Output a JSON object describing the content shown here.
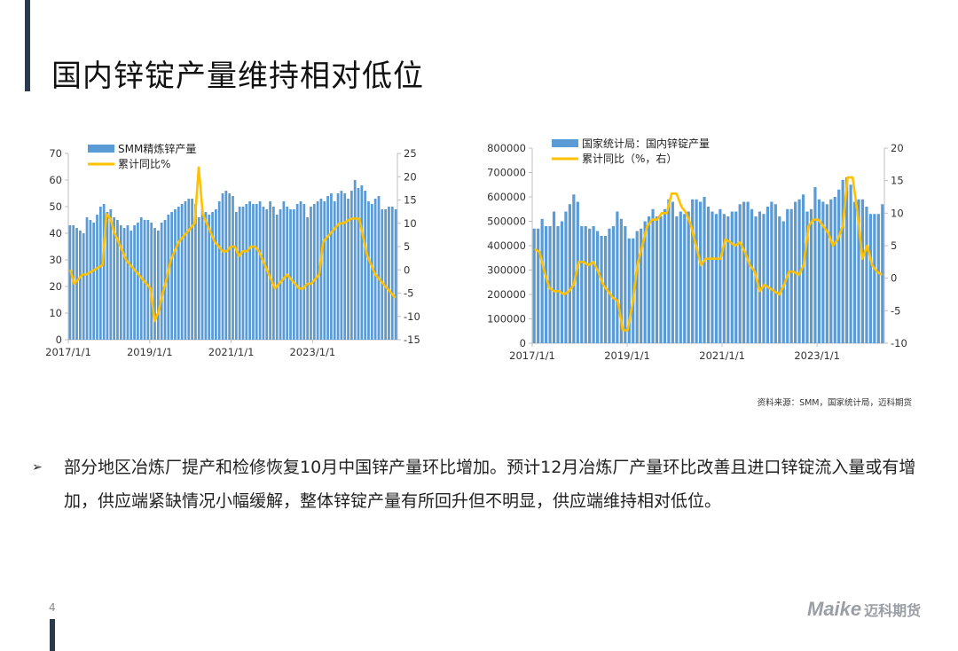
{
  "page": {
    "title": "国内锌锭产量维持相对低位",
    "source_note": "资料来源：SMM，国家统计局，迈科期货",
    "bullet_marker": "➢",
    "bullet_text": "部分地区冶炼厂提产和检修恢复10月中国锌产量环比增加。预计12月冶炼厂产量环比改善且进口锌锭流入量或有增加，供应端紧缺情况小幅缓解，整体锌锭产量有所回升但不明显，供应端维持相对低位。",
    "page_number": "4",
    "logo_latin": "Maike",
    "logo_cn": "迈科期货"
  },
  "colors": {
    "bar": "#5b9bd5",
    "line": "#ffc000",
    "axis": "#bfbfbf",
    "accent": "#2b3a4f"
  },
  "chart_data": [
    {
      "type": "bar",
      "title": "",
      "series": [
        {
          "name": "SMM精炼锌产量",
          "type": "bar",
          "axis": "left",
          "values": [
            43,
            43,
            42,
            41,
            40,
            46,
            45,
            44,
            47,
            50,
            51,
            48,
            49,
            46,
            45,
            43,
            42,
            43,
            41,
            43,
            44,
            46,
            45,
            45,
            44,
            42,
            41,
            44,
            45,
            47,
            48,
            49,
            50,
            51,
            52,
            53,
            53,
            51,
            46,
            49,
            48,
            47,
            48,
            49,
            52,
            55,
            56,
            55,
            54,
            48,
            50,
            50,
            51,
            52,
            51,
            51,
            52,
            50,
            49,
            52,
            50,
            47,
            49,
            52,
            50,
            49,
            49,
            51,
            52,
            51,
            46,
            50,
            51,
            52,
            53,
            52,
            54,
            55,
            52,
            55,
            56,
            55,
            53,
            56,
            60,
            57,
            58,
            56,
            52,
            51,
            53,
            54,
            49,
            49,
            50,
            50,
            49
          ]
        },
        {
          "name": "累计同比%",
          "type": "line",
          "axis": "right",
          "values": [
            0,
            -3,
            -2,
            -1,
            -1,
            -0.5,
            0,
            0.5,
            1,
            12,
            11,
            8,
            6,
            4,
            2,
            1,
            0,
            -1,
            -2,
            -3,
            -4,
            -11,
            -9,
            -5,
            -2,
            2,
            4,
            6,
            7,
            8,
            9,
            10,
            22,
            12,
            10,
            8,
            6,
            5,
            4,
            4,
            5,
            5,
            3,
            4,
            4,
            5,
            5,
            4,
            2,
            0,
            -2,
            -4,
            -3,
            -2,
            -1,
            -2,
            -3,
            -4,
            -4,
            -3,
            -3,
            -2,
            -1,
            6,
            7,
            8,
            9,
            10,
            10,
            10.5,
            11,
            11,
            11,
            7,
            3,
            1,
            -1,
            -2,
            -3,
            -4,
            -5,
            -6
          ]
        }
      ],
      "x_tick_labels": [
        "2017/1/1",
        "2019/1/1",
        "2021/1/1",
        "2023/1/1"
      ],
      "x_tick_index": [
        0,
        24,
        48,
        72
      ],
      "ylim_left": [
        0,
        70
      ],
      "yticks_left": [
        0,
        10,
        20,
        30,
        40,
        50,
        60,
        70
      ],
      "ylim_right": [
        -15,
        25
      ],
      "yticks_right": [
        -15,
        -10,
        -5,
        0,
        5,
        10,
        15,
        20,
        25
      ],
      "legend_position": "top-left",
      "grid": false
    },
    {
      "type": "bar",
      "title": "",
      "series": [
        {
          "name": "国家统计局：国内锌锭产量",
          "type": "bar",
          "axis": "left",
          "values": [
            470000,
            470000,
            510000,
            480000,
            480000,
            540000,
            480000,
            500000,
            540000,
            570000,
            610000,
            580000,
            480000,
            480000,
            470000,
            480000,
            460000,
            440000,
            440000,
            470000,
            480000,
            540000,
            510000,
            480000,
            430000,
            430000,
            460000,
            470000,
            500000,
            520000,
            550000,
            520000,
            520000,
            550000,
            590000,
            580000,
            520000,
            540000,
            530000,
            540000,
            590000,
            590000,
            580000,
            600000,
            560000,
            540000,
            530000,
            550000,
            530000,
            520000,
            540000,
            540000,
            570000,
            580000,
            580000,
            550000,
            520000,
            540000,
            530000,
            560000,
            580000,
            570000,
            520000,
            500000,
            550000,
            550000,
            580000,
            590000,
            610000,
            540000,
            550000,
            640000,
            590000,
            580000,
            570000,
            590000,
            600000,
            630000,
            670000,
            680000,
            650000,
            580000,
            590000,
            590000,
            560000,
            530000,
            530000,
            530000,
            570000
          ]
        },
        {
          "name": "累计同比（%，右）",
          "type": "line",
          "axis": "right",
          "values": [
            4.5,
            4,
            1,
            -1.5,
            -2,
            -2,
            -2.5,
            -2,
            -1,
            2.5,
            2.5,
            2,
            2.5,
            1,
            -1,
            -2,
            -3,
            -3.5,
            -8,
            -8,
            -4,
            2,
            5,
            8,
            9,
            9,
            10,
            10,
            13,
            13,
            11,
            10,
            8,
            5,
            2,
            3,
            3,
            3,
            3,
            6,
            5.5,
            5,
            5.5,
            4,
            2,
            1,
            -2,
            -1,
            -1.5,
            -2,
            -2.5,
            -1,
            1,
            1,
            0.5,
            2,
            8,
            9,
            9,
            8,
            7,
            5,
            6,
            8,
            15.5,
            15.5,
            10,
            3,
            5,
            2,
            1,
            0.5
          ]
        }
      ],
      "x_tick_labels": [
        "2017/1/1",
        "2019/1/1",
        "2021/1/1",
        "2023/1/1"
      ],
      "x_tick_index": [
        0,
        24,
        48,
        72
      ],
      "ylim_left": [
        0,
        800000
      ],
      "yticks_left": [
        0,
        100000,
        200000,
        300000,
        400000,
        500000,
        600000,
        700000,
        800000
      ],
      "ylim_right": [
        -10,
        20
      ],
      "yticks_right": [
        -10,
        -5,
        0,
        5,
        10,
        15,
        20
      ],
      "legend_position": "top-left",
      "grid": false
    }
  ]
}
